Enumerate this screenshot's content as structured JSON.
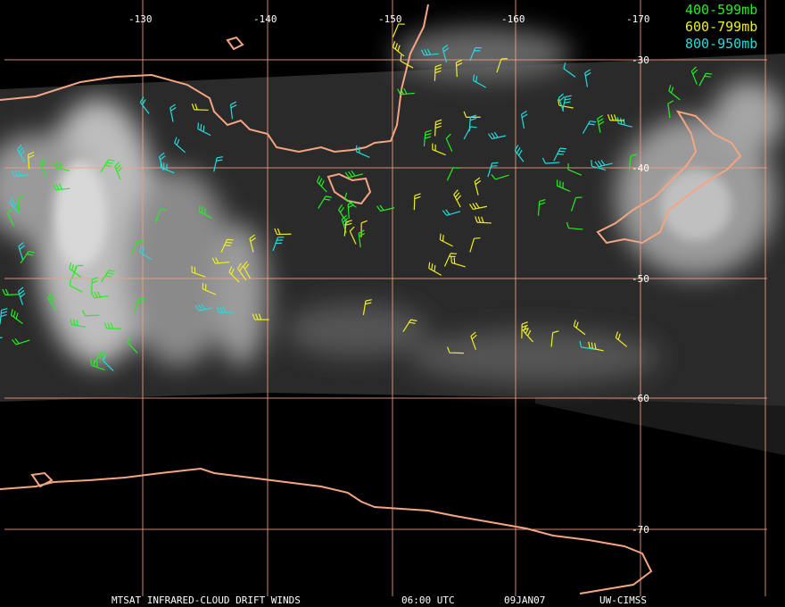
{
  "map": {
    "longitude_labels": [
      "-130",
      "-140",
      "-150",
      "-160",
      "-170"
    ],
    "latitude_labels": [
      "-30",
      "-40",
      "-50",
      "-60",
      "-70"
    ]
  },
  "legend": {
    "entries": [
      {
        "label": "400-599mb",
        "color": "#22ee22"
      },
      {
        "label": "600-799mb",
        "color": "#eeee22"
      },
      {
        "label": "800-950mb",
        "color": "#22dddd"
      }
    ]
  },
  "footer": {
    "product": "MTSAT INFRARED-CLOUD DRIFT WINDS",
    "time": "06:00 UTC",
    "date": "09JAN07",
    "source": "UW-CIMSS"
  }
}
